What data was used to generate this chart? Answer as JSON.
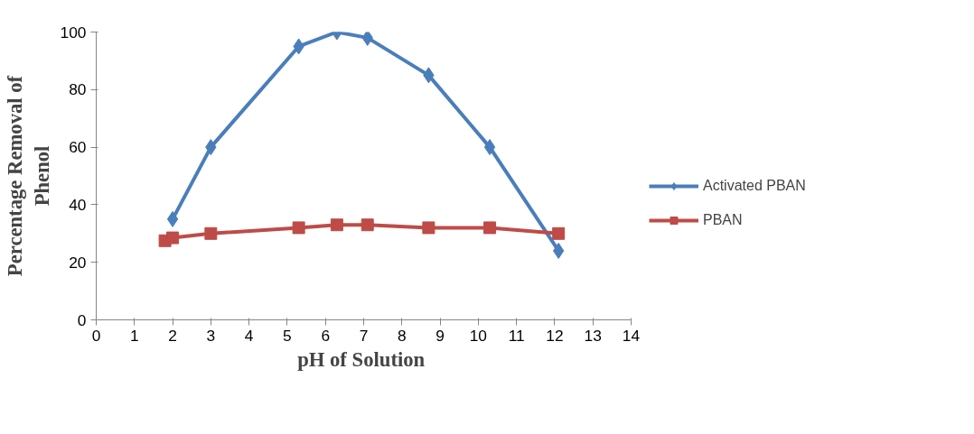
{
  "chart_data": {
    "type": "line",
    "xlabel": "pH of  Solution",
    "ylabel": "Percentage Removal of Phenol",
    "xlim": [
      0,
      14
    ],
    "xticks": [
      0,
      1,
      2,
      3,
      4,
      5,
      6,
      7,
      8,
      9,
      10,
      11,
      12,
      13,
      14
    ],
    "ylim": [
      0,
      100
    ],
    "yticks": [
      0,
      20,
      40,
      60,
      80,
      100
    ],
    "grid": false,
    "legend": "right",
    "line_style": "solid",
    "series": [
      {
        "name": "Activated PBAN",
        "color": "#4a7ebb",
        "marker": "diamond",
        "x": [
          2,
          3,
          5.3,
          6.3,
          7.1,
          8.7,
          10.3,
          12.1
        ],
        "values": [
          35,
          60,
          95,
          100,
          98,
          85,
          60,
          24
        ]
      },
      {
        "name": "PBAN",
        "color": "#be4b48",
        "marker": "square",
        "x": [
          1.8,
          2,
          3,
          5.3,
          6.3,
          7.1,
          8.7,
          10.3,
          12.1
        ],
        "values": [
          27.5,
          28.5,
          30,
          32,
          33,
          33,
          32,
          32,
          30
        ]
      }
    ]
  }
}
